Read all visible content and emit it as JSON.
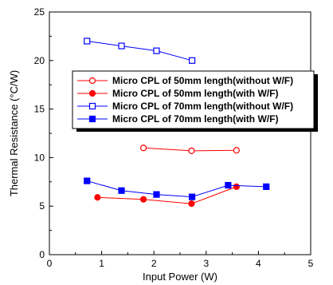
{
  "chart_data": {
    "type": "line",
    "xlabel": "Input Power (W)",
    "ylabel": "Thermal Resistance (°C/W)",
    "xlim": [
      0,
      5
    ],
    "ylim": [
      0,
      25
    ],
    "xticks": [
      "0",
      "1",
      "2",
      "3",
      "4",
      "5"
    ],
    "yticks": [
      "0",
      "5",
      "10",
      "15",
      "20",
      "25"
    ],
    "grid": false,
    "legend_position": "upper-right",
    "series": [
      {
        "name": "Micro CPL of 50mm length(without W/F)",
        "color": "#ff0000",
        "marker": "circle-open",
        "x": [
          1.8,
          2.72,
          3.58
        ],
        "y": [
          11.0,
          10.7,
          10.75
        ]
      },
      {
        "name": "Micro CPL of 50mm length(with W/F)",
        "color": "#ff0000",
        "marker": "circle-filled",
        "x": [
          0.92,
          1.8,
          2.72,
          3.58
        ],
        "y": [
          5.9,
          5.7,
          5.25,
          7.0
        ]
      },
      {
        "name": "Micro CPL of 70mm length(without W/F)",
        "color": "#0000ff",
        "marker": "square-open",
        "x": [
          0.72,
          1.38,
          2.05,
          2.73
        ],
        "y": [
          22.0,
          21.5,
          21.0,
          20.0
        ]
      },
      {
        "name": "Micro CPL of 70mm length(with W/F)",
        "color": "#0000ff",
        "marker": "square-filled",
        "x": [
          0.72,
          1.38,
          2.05,
          2.73,
          3.42,
          4.15
        ],
        "y": [
          7.6,
          6.6,
          6.2,
          5.95,
          7.15,
          7.0
        ]
      }
    ]
  }
}
